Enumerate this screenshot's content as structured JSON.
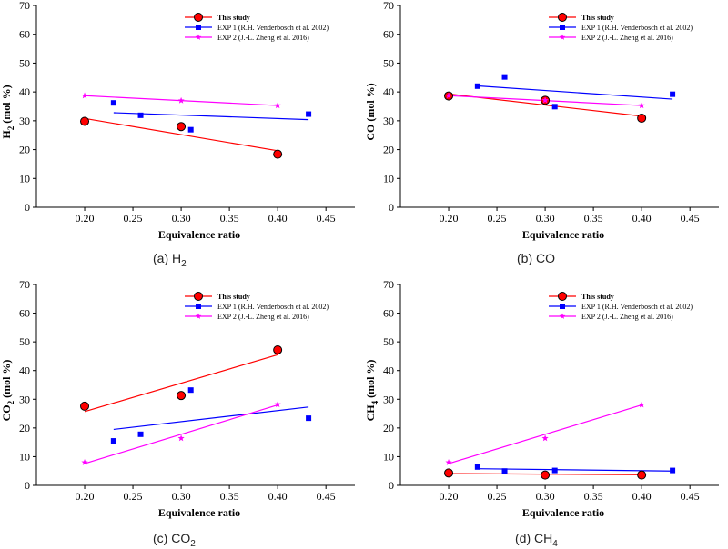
{
  "figure": {
    "captions": [
      {
        "prefix": "(a) H",
        "sub": "2",
        "suffix": ""
      },
      {
        "prefix": "(b) CO",
        "sub": "",
        "suffix": ""
      },
      {
        "prefix": "(c) CO",
        "sub": "2",
        "suffix": ""
      },
      {
        "prefix": "(d) CH",
        "sub": "4",
        "suffix": ""
      }
    ]
  },
  "legend_labels": [
    "This study",
    "EXP 1 (R.H. Venderbosch et al. 2002)",
    "EXP 2 (J.-L. Zheng et al. 2016)"
  ],
  "colors": {
    "this_study": "#ff0000",
    "exp1": "#0000ff",
    "exp2": "#ff00ff",
    "marker_edge": "#000000"
  },
  "chart_data": [
    {
      "type": "scatter",
      "title": "",
      "xlabel": "Equivalence ratio",
      "ylabel_main": "H",
      "ylabel_sub": "2",
      "ylabel_rest": " (mol %)",
      "xlim": [
        0.15,
        0.48
      ],
      "ylim": [
        0,
        70
      ],
      "xticks": [
        "0.20",
        "0.25",
        "0.30",
        "0.35",
        "0.40",
        "0.45"
      ],
      "yticks": [
        "0",
        "10",
        "20",
        "30",
        "40",
        "50",
        "60",
        "70"
      ],
      "legend": "top-right",
      "series": [
        {
          "name": "This study",
          "x": [
            0.2,
            0.3,
            0.4
          ],
          "y": [
            29.8,
            28.0,
            18.4
          ],
          "fit": [
            [
              0.2,
              30.8
            ],
            [
              0.4,
              19.6
            ]
          ]
        },
        {
          "name": "EXP 1 (R.H. Venderbosch et al. 2002)",
          "x": [
            0.23,
            0.258,
            0.31,
            0.432
          ],
          "y": [
            36.2,
            31.9,
            26.9,
            32.3
          ],
          "fit": [
            [
              0.23,
              32.8
            ],
            [
              0.432,
              30.4
            ]
          ]
        },
        {
          "name": "EXP 2 (J.-L. Zheng et al. 2016)",
          "x": [
            0.2,
            0.3,
            0.4
          ],
          "y": [
            38.7,
            37.0,
            35.3
          ],
          "fit": [
            [
              0.2,
              38.7
            ],
            [
              0.4,
              35.3
            ]
          ]
        }
      ]
    },
    {
      "type": "scatter",
      "title": "",
      "xlabel": "Equivalence ratio",
      "ylabel_main": "CO",
      "ylabel_sub": "",
      "ylabel_rest": " (mol %)",
      "xlim": [
        0.15,
        0.48
      ],
      "ylim": [
        0,
        70
      ],
      "xticks": [
        "0.20",
        "0.25",
        "0.30",
        "0.35",
        "0.40",
        "0.45"
      ],
      "yticks": [
        "0",
        "10",
        "20",
        "30",
        "40",
        "50",
        "60",
        "70"
      ],
      "legend": "top-right",
      "series": [
        {
          "name": "This study",
          "x": [
            0.2,
            0.3,
            0.4
          ],
          "y": [
            38.6,
            37.1,
            30.9
          ],
          "fit": [
            [
              0.2,
              39.3
            ],
            [
              0.4,
              31.6
            ]
          ]
        },
        {
          "name": "EXP 1 (R.H. Venderbosch et al. 2002)",
          "x": [
            0.23,
            0.258,
            0.31,
            0.432
          ],
          "y": [
            42.0,
            45.2,
            34.9,
            39.2
          ],
          "fit": [
            [
              0.23,
              42.1
            ],
            [
              0.432,
              37.5
            ]
          ]
        },
        {
          "name": "EXP 2 (J.-L. Zheng et al. 2016)",
          "x": [
            0.2,
            0.3,
            0.4
          ],
          "y": [
            38.7,
            37.1,
            35.3
          ],
          "fit": [
            [
              0.2,
              38.7
            ],
            [
              0.4,
              35.3
            ]
          ]
        }
      ]
    },
    {
      "type": "scatter",
      "title": "",
      "xlabel": "Equivalence ratio",
      "ylabel_main": "CO",
      "ylabel_sub": "2",
      "ylabel_rest": " (mol %)",
      "xlim": [
        0.15,
        0.48
      ],
      "ylim": [
        0,
        70
      ],
      "xticks": [
        "0.20",
        "0.25",
        "0.30",
        "0.35",
        "0.40",
        "0.45"
      ],
      "yticks": [
        "0",
        "10",
        "20",
        "30",
        "40",
        "50",
        "60",
        "70"
      ],
      "legend": "top-right",
      "series": [
        {
          "name": "This study",
          "x": [
            0.2,
            0.3,
            0.4
          ],
          "y": [
            27.6,
            31.3,
            47.2
          ],
          "fit": [
            [
              0.2,
              25.7
            ],
            [
              0.4,
              45.5
            ]
          ]
        },
        {
          "name": "EXP 1 (R.H. Venderbosch et al. 2002)",
          "x": [
            0.23,
            0.258,
            0.31,
            0.432
          ],
          "y": [
            15.5,
            17.8,
            33.2,
            23.4
          ],
          "fit": [
            [
              0.23,
              19.5
            ],
            [
              0.432,
              27.3
            ]
          ]
        },
        {
          "name": "EXP 2 (J.-L. Zheng et al. 2016)",
          "x": [
            0.2,
            0.3,
            0.4
          ],
          "y": [
            8.0,
            16.4,
            28.2
          ],
          "fit": [
            [
              0.2,
              7.6
            ],
            [
              0.4,
              28.0
            ]
          ]
        }
      ]
    },
    {
      "type": "scatter",
      "title": "",
      "xlabel": "Equivalence ratio",
      "ylabel_main": "CH",
      "ylabel_sub": "4",
      "ylabel_rest": " (mol %)",
      "xlim": [
        0.15,
        0.48
      ],
      "ylim": [
        0,
        70
      ],
      "xticks": [
        "0.20",
        "0.25",
        "0.30",
        "0.35",
        "0.40",
        "0.45"
      ],
      "yticks": [
        "0",
        "10",
        "20",
        "30",
        "40",
        "50",
        "60",
        "70"
      ],
      "legend": "top-right",
      "series": [
        {
          "name": "This study",
          "x": [
            0.2,
            0.3,
            0.4
          ],
          "y": [
            4.3,
            3.6,
            3.6
          ],
          "fit": [
            [
              0.2,
              4.1
            ],
            [
              0.4,
              3.7
            ]
          ]
        },
        {
          "name": "EXP 1 (R.H. Venderbosch et al. 2002)",
          "x": [
            0.23,
            0.258,
            0.31,
            0.432
          ],
          "y": [
            6.4,
            5.0,
            5.2,
            5.2
          ],
          "fit": [
            [
              0.23,
              5.8
            ],
            [
              0.432,
              5.0
            ]
          ]
        },
        {
          "name": "EXP 2 (J.-L. Zheng et al. 2016)",
          "x": [
            0.2,
            0.3,
            0.4
          ],
          "y": [
            8.0,
            16.4,
            28.1
          ],
          "fit": [
            [
              0.2,
              7.6
            ],
            [
              0.4,
              28.0
            ]
          ]
        }
      ]
    }
  ]
}
